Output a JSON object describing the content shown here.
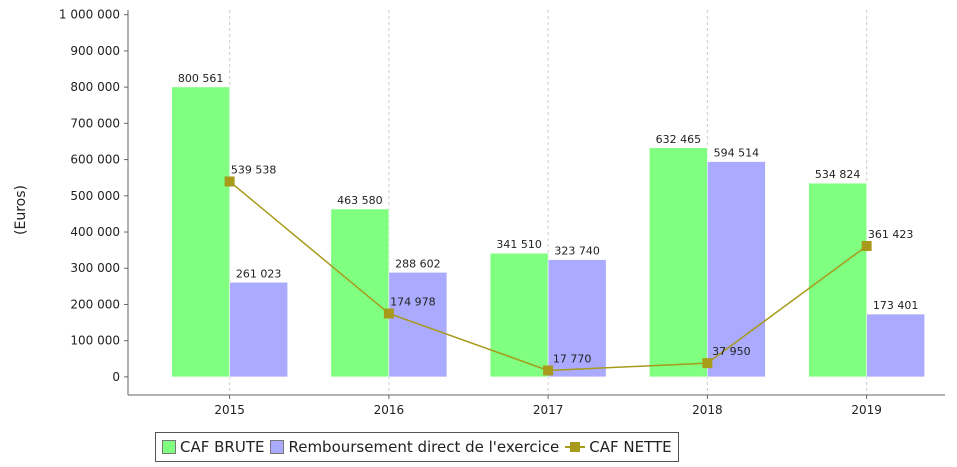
{
  "chart_data": {
    "type": "bar",
    "categories": [
      "2015",
      "2016",
      "2017",
      "2018",
      "2019"
    ],
    "y_label": "(Euros)",
    "ylim": [
      -50000,
      1013000
    ],
    "yticks": [
      {
        "value": 0,
        "label": "0"
      },
      {
        "value": 100000,
        "label": "100 000"
      },
      {
        "value": 200000,
        "label": "200 000"
      },
      {
        "value": 300000,
        "label": "300 000"
      },
      {
        "value": 400000,
        "label": "400 000"
      },
      {
        "value": 500000,
        "label": "500 000"
      },
      {
        "value": 600000,
        "label": "600 000"
      },
      {
        "value": 700000,
        "label": "700 000"
      },
      {
        "value": 800000,
        "label": "800 000"
      },
      {
        "value": 900000,
        "label": "900 000"
      },
      {
        "value": 1000000,
        "label": "1 000 000"
      }
    ],
    "grid": true,
    "legend": "bottom",
    "series": [
      {
        "name": "CAF BRUTE",
        "type": "bar",
        "color": "#80ff80",
        "values": [
          800561,
          463580,
          341510,
          632465,
          534824
        ],
        "value_labels": [
          "800 561",
          "463 580",
          "341 510",
          "632 465",
          "534 824"
        ]
      },
      {
        "name": "Remboursement direct de l'exercice",
        "type": "bar",
        "color": "#aaaaff",
        "values": [
          261023,
          288602,
          323740,
          594514,
          173401
        ],
        "value_labels": [
          "261 023",
          "288 602",
          "323 740",
          "594 514",
          "173 401"
        ]
      },
      {
        "name": "CAF NETTE",
        "type": "line",
        "color": "#a89a1a",
        "values": [
          539538,
          174978,
          17770,
          37950,
          361423
        ],
        "value_labels": [
          "539 538",
          "174 978",
          "17 770",
          "37 950",
          "361 423"
        ]
      }
    ]
  }
}
